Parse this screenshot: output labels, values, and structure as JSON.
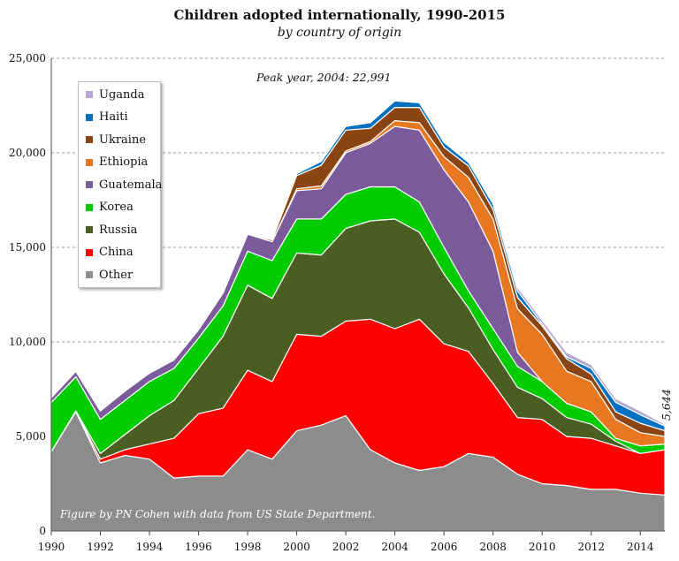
{
  "chart_data": {
    "type": "area",
    "stacked": true,
    "title": "Children adopted internationally, 1990-2015",
    "subtitle": "by country of origin",
    "x": [
      1990,
      1991,
      1992,
      1993,
      1994,
      1995,
      1996,
      1997,
      1998,
      1999,
      2000,
      2001,
      2002,
      2003,
      2004,
      2005,
      2006,
      2007,
      2008,
      2009,
      2010,
      2011,
      2012,
      2013,
      2014,
      2015
    ],
    "xticks": [
      "1990",
      "1992",
      "1994",
      "1996",
      "1998",
      "2000",
      "2002",
      "2004",
      "2006",
      "2008",
      "2010",
      "2012",
      "2014"
    ],
    "ylim": [
      0,
      25000
    ],
    "yticks": [
      "0",
      "5,000",
      "10,000",
      "15,000",
      "20,000",
      "25,000"
    ],
    "grid": true,
    "legend_position": "top-left",
    "series": [
      {
        "name": "Other",
        "color": "#8c8c8c",
        "values": [
          4200,
          6300,
          3600,
          4000,
          3800,
          2800,
          2900,
          2900,
          4300,
          3800,
          5300,
          5600,
          6100,
          4300,
          3600,
          3200,
          3400,
          4100,
          3900,
          3000,
          2500,
          2400,
          2200,
          2200,
          2000,
          1900
        ]
      },
      {
        "name": "China",
        "color": "#ff0000",
        "values": [
          0,
          50,
          200,
          300,
          800,
          2100,
          3300,
          3600,
          4200,
          4100,
          5100,
          4700,
          5000,
          6900,
          7100,
          8000,
          6500,
          5400,
          3900,
          3000,
          3400,
          2600,
          2700,
          2300,
          2100,
          2400
        ]
      },
      {
        "name": "Russia",
        "color": "#4b5e22",
        "values": [
          0,
          0,
          300,
          800,
          1500,
          2000,
          2400,
          3800,
          4500,
          4400,
          4300,
          4300,
          4900,
          5200,
          5800,
          4600,
          3700,
          2300,
          1800,
          1600,
          1100,
          1000,
          750,
          250,
          0,
          0
        ]
      },
      {
        "name": "Korea",
        "color": "#00cc00",
        "values": [
          2600,
          1800,
          1800,
          1800,
          1800,
          1700,
          1600,
          1600,
          1800,
          2000,
          1800,
          1900,
          1800,
          1800,
          1700,
          1600,
          1400,
          900,
          1100,
          1100,
          900,
          750,
          650,
          150,
          400,
          300
        ]
      },
      {
        "name": "Guatemala",
        "color": "#7b5b9b",
        "values": [
          250,
          300,
          450,
          500,
          450,
          450,
          450,
          700,
          900,
          1000,
          1500,
          1600,
          2200,
          2300,
          3200,
          3800,
          4100,
          4700,
          4100,
          750,
          0,
          0,
          0,
          0,
          0,
          0
        ]
      },
      {
        "name": "Ethiopia",
        "color": "#e87722",
        "values": [
          0,
          0,
          0,
          0,
          0,
          0,
          0,
          0,
          0,
          0,
          100,
          150,
          100,
          100,
          300,
          400,
          700,
          1300,
          1700,
          2300,
          2500,
          1700,
          1600,
          1000,
          700,
          400
        ]
      },
      {
        "name": "Ukraine",
        "color": "#8b4513",
        "values": [
          0,
          0,
          0,
          0,
          0,
          0,
          0,
          0,
          0,
          100,
          700,
          1100,
          1100,
          700,
          700,
          800,
          500,
          600,
          500,
          600,
          450,
          650,
          400,
          400,
          500,
          300
        ]
      },
      {
        "name": "Haiti",
        "color": "#0070c0",
        "values": [
          0,
          0,
          0,
          0,
          0,
          0,
          0,
          0,
          0,
          0,
          100,
          200,
          200,
          300,
          350,
          250,
          250,
          200,
          300,
          350,
          100,
          100,
          300,
          500,
          450,
          250
        ]
      },
      {
        "name": "Uganda",
        "color": "#b4a7d6",
        "values": [
          0,
          0,
          0,
          0,
          0,
          0,
          0,
          0,
          0,
          0,
          0,
          0,
          0,
          0,
          0,
          0,
          0,
          50,
          100,
          200,
          200,
          250,
          200,
          200,
          200,
          100
        ]
      }
    ],
    "annotations": [
      {
        "text": "Peak year, 2004: 22,991",
        "x": 2004,
        "y": 22991
      },
      {
        "text": "5,644",
        "x": 2015,
        "y": 5644
      }
    ],
    "credit": "Figure by PN Cohen with data from US State Department."
  }
}
